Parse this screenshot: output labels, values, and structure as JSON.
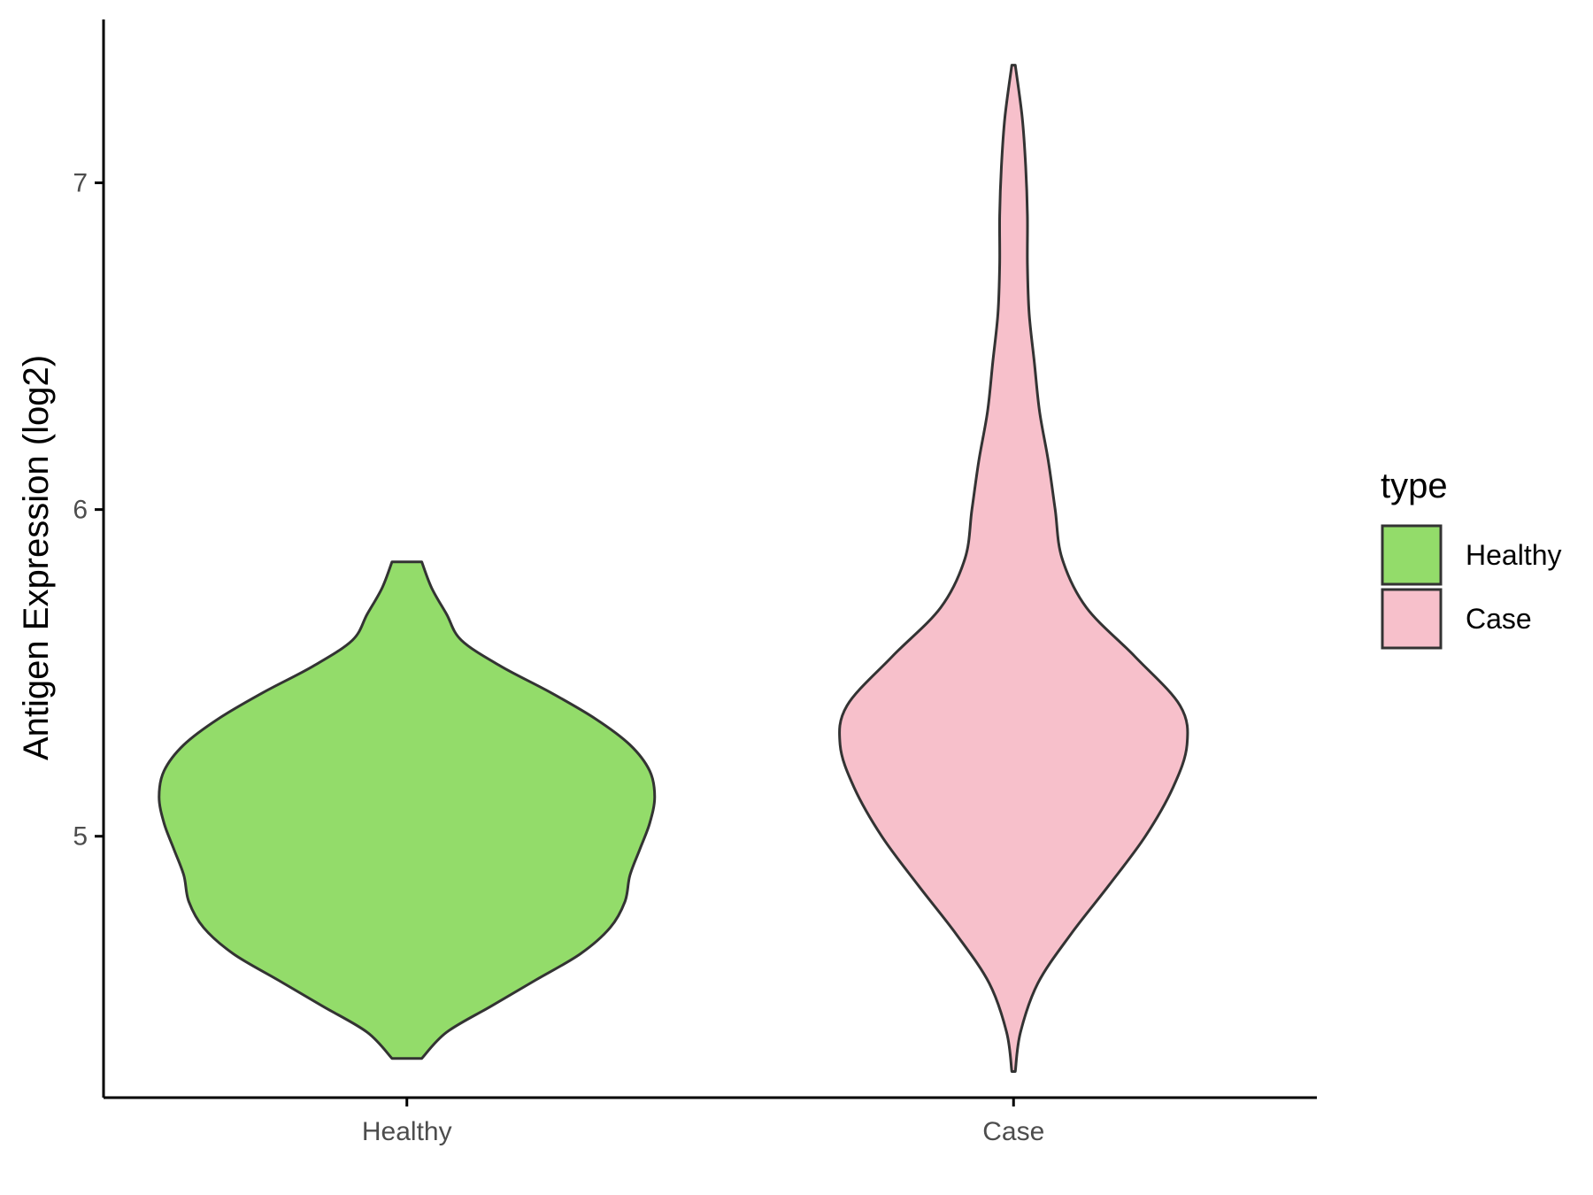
{
  "chart_data": {
    "type": "violin",
    "title": "",
    "xlabel": "",
    "ylabel": "Antigen Expression (log2)",
    "categories": [
      "Healthy",
      "Case"
    ],
    "ylim": [
      4.2,
      7.5
    ],
    "yticks": [
      5,
      6,
      7
    ],
    "grid": false,
    "legend": {
      "title": "type",
      "position": "right",
      "entries": [
        {
          "label": "Healthy",
          "color": "#93dc6a"
        },
        {
          "label": "Case",
          "color": "#f7c0cb"
        }
      ]
    },
    "series": [
      {
        "name": "Healthy",
        "color": "#93dc6a",
        "min": 4.32,
        "max": 5.84,
        "density": [
          [
            4.32,
            0.06
          ],
          [
            4.4,
            0.16
          ],
          [
            4.48,
            0.34
          ],
          [
            4.56,
            0.52
          ],
          [
            4.64,
            0.7
          ],
          [
            4.72,
            0.82
          ],
          [
            4.8,
            0.88
          ],
          [
            4.88,
            0.9
          ],
          [
            4.96,
            0.94
          ],
          [
            5.04,
            0.98
          ],
          [
            5.12,
            1.0
          ],
          [
            5.2,
            0.98
          ],
          [
            5.28,
            0.9
          ],
          [
            5.36,
            0.76
          ],
          [
            5.44,
            0.58
          ],
          [
            5.52,
            0.38
          ],
          [
            5.6,
            0.22
          ],
          [
            5.68,
            0.16
          ],
          [
            5.76,
            0.1
          ],
          [
            5.84,
            0.06
          ]
        ]
      },
      {
        "name": "Case",
        "color": "#f7c0cb",
        "min": 4.28,
        "max": 7.36,
        "density": [
          [
            4.28,
            0.01
          ],
          [
            4.4,
            0.04
          ],
          [
            4.55,
            0.14
          ],
          [
            4.7,
            0.33
          ],
          [
            4.85,
            0.55
          ],
          [
            5.0,
            0.76
          ],
          [
            5.15,
            0.92
          ],
          [
            5.28,
            1.0
          ],
          [
            5.4,
            0.96
          ],
          [
            5.55,
            0.7
          ],
          [
            5.7,
            0.42
          ],
          [
            5.85,
            0.28
          ],
          [
            6.0,
            0.24
          ],
          [
            6.15,
            0.2
          ],
          [
            6.3,
            0.15
          ],
          [
            6.45,
            0.12
          ],
          [
            6.6,
            0.09
          ],
          [
            6.75,
            0.08
          ],
          [
            6.9,
            0.08
          ],
          [
            7.05,
            0.07
          ],
          [
            7.2,
            0.05
          ],
          [
            7.36,
            0.01
          ]
        ]
      }
    ]
  }
}
